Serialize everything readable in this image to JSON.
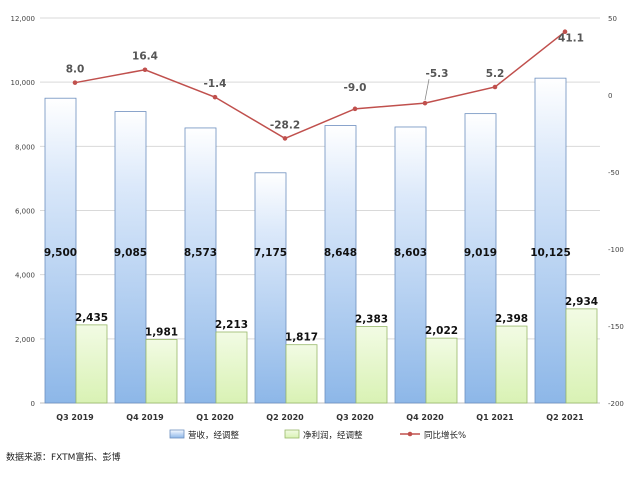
{
  "chart_data": {
    "type": "bar",
    "categories": [
      "Q3 2019",
      "Q4 2019",
      "Q1 2020",
      "Q2 2020",
      "Q3 2020",
      "Q4 2020",
      "Q1 2021",
      "Q2 2021"
    ],
    "series": [
      {
        "name": "营收，经调整",
        "kind": "bar",
        "axis": "left",
        "values": [
          9500,
          9085,
          8573,
          7175,
          8648,
          8603,
          9019,
          10125
        ],
        "labels": [
          "9,500",
          "9,085",
          "8,573",
          "7,175",
          "8,648",
          "8,603",
          "9,019",
          "10,125"
        ],
        "color": "#9dc3ec"
      },
      {
        "name": "净利润，经调整",
        "kind": "bar",
        "axis": "left",
        "values": [
          2435,
          1981,
          2213,
          1817,
          2383,
          2022,
          2398,
          2934
        ],
        "labels": [
          "2,435",
          "1,981",
          "2,213",
          "1,817",
          "2,383",
          "2,022",
          "2,398",
          "2,934"
        ],
        "color": "#e2f5c8"
      },
      {
        "name": "同比增长%",
        "kind": "line",
        "axis": "right",
        "values": [
          8.0,
          16.4,
          -1.4,
          -28.2,
          -9.0,
          -5.3,
          5.2,
          41.1
        ],
        "labels": [
          "8.0",
          "16.4",
          "-1.4",
          "-28.2",
          "-9.0",
          "-5.3",
          "5.2",
          "41.1"
        ],
        "color": "#c0504d"
      }
    ],
    "y_left": {
      "min": 0,
      "max": 12000,
      "ticks": [
        "0",
        "2,000",
        "4,000",
        "6,000",
        "8,000",
        "10,000",
        "12,000"
      ],
      "tick_values": [
        0,
        2000,
        4000,
        6000,
        8000,
        10000,
        12000
      ]
    },
    "y_right": {
      "min": -200,
      "max": 50,
      "ticks": [
        "50",
        "0",
        "-50",
        "-100",
        "-150",
        "-200"
      ],
      "tick_values": [
        50,
        0,
        -50,
        -100,
        -150,
        -200
      ]
    },
    "grid": true,
    "legend_position": "bottom"
  },
  "source_note": "数据来源：FXTM富拓、彭博"
}
